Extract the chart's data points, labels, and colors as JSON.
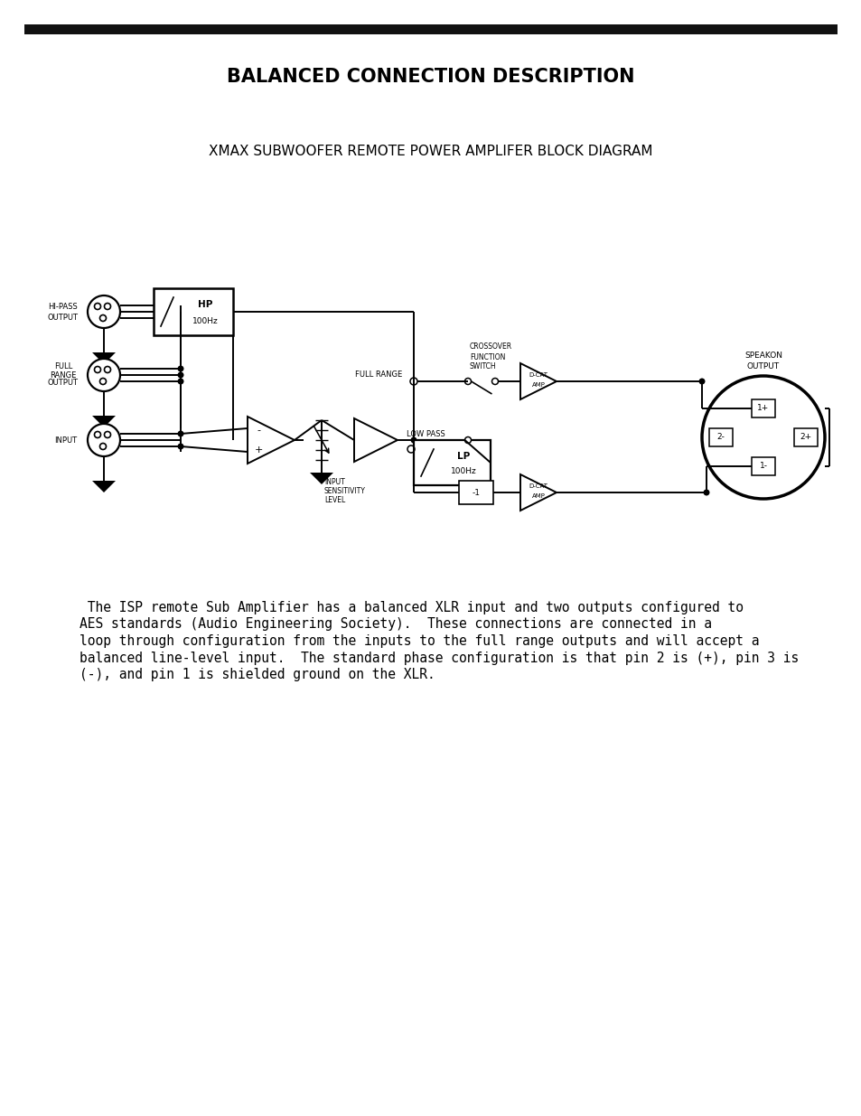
{
  "title": "BALANCED CONNECTION DESCRIPTION",
  "subtitle": "XMAX SUBWOOFER REMOTE POWER AMPLIFER BLOCK DIAGRAM",
  "body_text_lines": [
    " The ISP remote Sub Amplifier has a balanced XLR input and two outputs configured to",
    "AES standards (Audio Engineering Society).  These connections are connected in a",
    "loop through configuration from the inputs to the full range outputs and will accept a",
    "balanced line-level input.  The standard phase configuration is that pin 2 is (+), pin 3 is",
    "(-), and pin 1 is shielded ground on the XLR."
  ],
  "bg_color": "#ffffff",
  "line_color": "#000000",
  "header_bar_color": "#111111",
  "title_fontsize": 15,
  "subtitle_fontsize": 11,
  "body_fontsize": 10.5
}
